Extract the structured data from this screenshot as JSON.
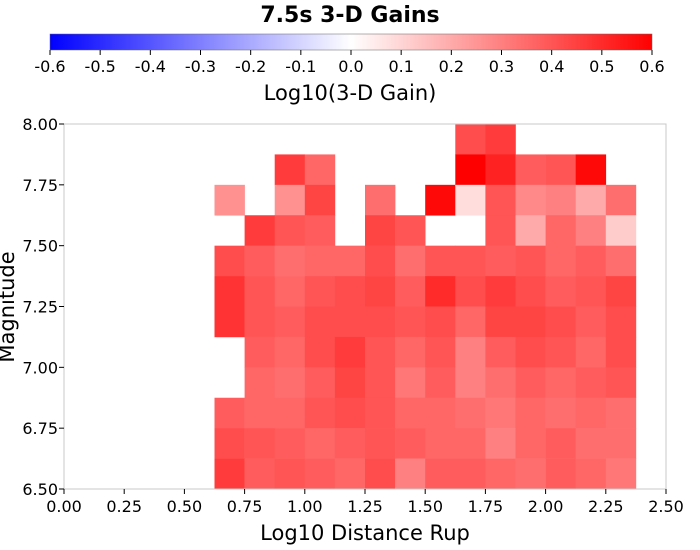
{
  "chart_data": {
    "type": "heatmap",
    "title": "7.5s 3-D Gains",
    "xlabel": "Log10 Distance Rup",
    "ylabel": "Magnitude",
    "xlim": [
      0.0,
      2.5
    ],
    "ylim": [
      6.5,
      8.0
    ],
    "x_ticks": [
      "0.00",
      "0.25",
      "0.50",
      "0.75",
      "1.00",
      "1.25",
      "1.50",
      "1.75",
      "2.00",
      "2.25",
      "2.50"
    ],
    "y_ticks": [
      "6.50",
      "6.75",
      "7.00",
      "7.25",
      "7.50",
      "7.75",
      "8.00"
    ],
    "colorbar": {
      "label": "Log10(3-D Gain)",
      "min": -0.6,
      "max": 0.6,
      "ticks": [
        "-0.6",
        "-0.5",
        "-0.4",
        "-0.3",
        "-0.2",
        "-0.1",
        "0.0",
        "0.1",
        "0.2",
        "0.3",
        "0.4",
        "0.5",
        "0.6"
      ],
      "low_color": "#0000ff",
      "mid_color": "#ffffff",
      "high_color": "#ff0000"
    },
    "cell_width": 0.125,
    "cell_height": 0.125,
    "x_centers": [
      0.6875,
      0.8125,
      0.9375,
      1.0625,
      1.1875,
      1.3125,
      1.4375,
      1.5625,
      1.6875,
      1.8125,
      1.9375,
      2.0625,
      2.1875,
      2.3125
    ],
    "y_centers": [
      7.9375,
      7.8125,
      7.6875,
      7.5625,
      7.4375,
      7.3125,
      7.1875,
      7.0625,
      6.9375,
      6.8125,
      6.6875,
      6.5625
    ],
    "values": [
      [
        null,
        null,
        null,
        null,
        null,
        null,
        null,
        null,
        0.42,
        0.46,
        null,
        null,
        null,
        null
      ],
      [
        null,
        null,
        0.46,
        0.36,
        null,
        null,
        null,
        null,
        0.6,
        0.52,
        0.38,
        0.4,
        0.58,
        null
      ],
      [
        0.26,
        null,
        0.26,
        0.44,
        null,
        0.34,
        null,
        0.58,
        0.08,
        0.4,
        0.28,
        0.3,
        0.2,
        0.34
      ],
      [
        null,
        0.46,
        0.4,
        0.38,
        null,
        0.44,
        0.4,
        null,
        null,
        0.4,
        0.2,
        0.36,
        0.3,
        0.12
      ],
      [
        0.42,
        0.38,
        0.34,
        0.36,
        0.36,
        0.42,
        0.34,
        0.4,
        0.4,
        0.38,
        0.4,
        0.36,
        0.38,
        0.34
      ],
      [
        0.48,
        0.4,
        0.36,
        0.4,
        0.42,
        0.44,
        0.38,
        0.5,
        0.42,
        0.46,
        0.42,
        0.38,
        0.4,
        0.44
      ],
      [
        0.48,
        0.4,
        0.38,
        0.42,
        0.42,
        0.42,
        0.4,
        0.42,
        0.36,
        0.44,
        0.44,
        0.42,
        0.38,
        0.42
      ],
      [
        null,
        0.38,
        0.36,
        0.42,
        0.46,
        0.4,
        0.36,
        0.4,
        0.3,
        0.38,
        0.42,
        0.4,
        0.36,
        0.42
      ],
      [
        null,
        0.36,
        0.34,
        0.38,
        0.44,
        0.4,
        0.32,
        0.38,
        0.3,
        0.34,
        0.38,
        0.36,
        0.38,
        0.4
      ],
      [
        0.38,
        0.36,
        0.36,
        0.4,
        0.42,
        0.4,
        0.36,
        0.36,
        0.34,
        0.32,
        0.36,
        0.34,
        0.36,
        0.34
      ],
      [
        0.42,
        0.4,
        0.38,
        0.36,
        0.38,
        0.4,
        0.38,
        0.36,
        0.36,
        0.3,
        0.36,
        0.38,
        0.34,
        0.34
      ],
      [
        0.46,
        0.38,
        0.4,
        0.38,
        0.36,
        0.42,
        0.3,
        0.38,
        0.38,
        0.36,
        0.34,
        0.38,
        0.36,
        0.32
      ]
    ]
  }
}
